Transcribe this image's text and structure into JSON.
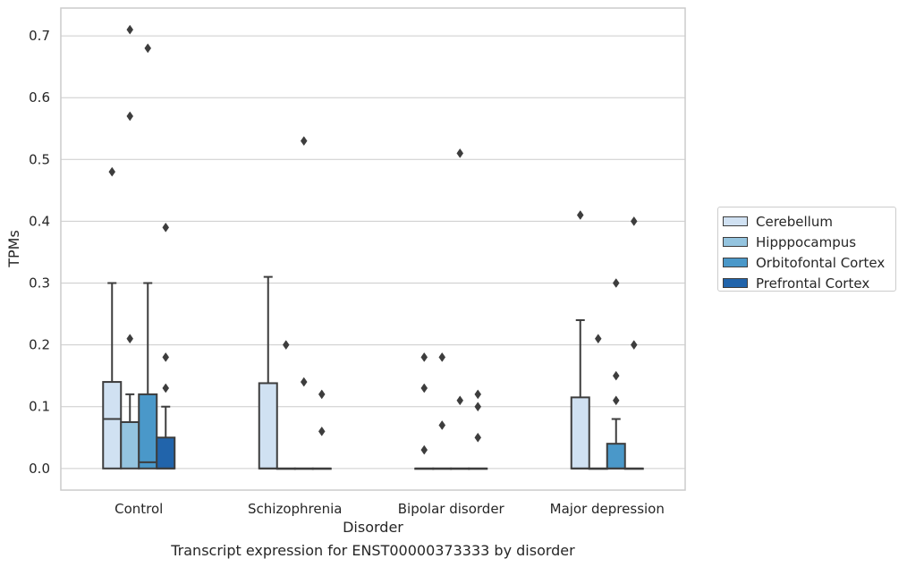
{
  "chart_data": {
    "type": "box",
    "caption": "Transcript expression for ENST00000373333 by disorder",
    "xlabel": "Disorder",
    "ylabel": "TPMs",
    "ylim": [
      -0.035,
      0.745
    ],
    "yticks": [
      0.0,
      0.1,
      0.2,
      0.3,
      0.4,
      0.5,
      0.6,
      0.7
    ],
    "ytick_labels": [
      "0.0",
      "0.1",
      "0.2",
      "0.3",
      "0.4",
      "0.5",
      "0.6",
      "0.7"
    ],
    "categories": [
      "Control",
      "Schizophrenia",
      "Bipolar disorder",
      "Major depression"
    ],
    "grid": true,
    "legend_position": "right",
    "series": [
      {
        "name": "Cerebellum",
        "color": "#d0e1f2",
        "boxes": [
          {
            "q1": 0,
            "median": 0.08,
            "q3": 0.14,
            "whisker_low": 0,
            "whisker_high": 0.3,
            "outliers": [
              0.48
            ]
          },
          {
            "q1": 0,
            "median": 0,
            "q3": 0.138,
            "whisker_low": 0,
            "whisker_high": 0.31,
            "outliers": []
          },
          {
            "q1": 0,
            "median": 0,
            "q3": 0,
            "whisker_low": 0,
            "whisker_high": 0,
            "outliers": [
              0.03,
              0.13,
              0.18
            ]
          },
          {
            "q1": 0,
            "median": 0,
            "q3": 0.115,
            "whisker_low": 0,
            "whisker_high": 0.24,
            "outliers": [
              0.41
            ]
          }
        ]
      },
      {
        "name": "Hipppocampus",
        "color": "#94c4df",
        "boxes": [
          {
            "q1": 0,
            "median": 0.075,
            "q3": 0.075,
            "whisker_low": 0,
            "whisker_high": 0.12,
            "outliers": [
              0.21,
              0.57,
              0.71
            ]
          },
          {
            "q1": 0,
            "median": 0,
            "q3": 0,
            "whisker_low": 0,
            "whisker_high": 0,
            "outliers": [
              0.2
            ]
          },
          {
            "q1": 0,
            "median": 0,
            "q3": 0,
            "whisker_low": 0,
            "whisker_high": 0,
            "outliers": [
              0.07,
              0.18
            ]
          },
          {
            "q1": 0,
            "median": 0,
            "q3": 0,
            "whisker_low": 0,
            "whisker_high": 0,
            "outliers": [
              0.21
            ]
          }
        ]
      },
      {
        "name": "Orbitofontal Cortex",
        "color": "#4a98c9",
        "boxes": [
          {
            "q1": 0,
            "median": 0.01,
            "q3": 0.12,
            "whisker_low": 0,
            "whisker_high": 0.3,
            "outliers": [
              0.68
            ]
          },
          {
            "q1": 0,
            "median": 0,
            "q3": 0,
            "whisker_low": 0,
            "whisker_high": 0,
            "outliers": [
              0.14,
              0.53
            ]
          },
          {
            "q1": 0,
            "median": 0,
            "q3": 0,
            "whisker_low": 0,
            "whisker_high": 0,
            "outliers": [
              0.11,
              0.51
            ]
          },
          {
            "q1": 0,
            "median": 0,
            "q3": 0.04,
            "whisker_low": 0,
            "whisker_high": 0.08,
            "outliers": [
              0.11,
              0.15,
              0.3
            ]
          }
        ]
      },
      {
        "name": "Prefrontal Cortex",
        "color": "#2164ab",
        "boxes": [
          {
            "q1": 0,
            "median": 0,
            "q3": 0.05,
            "whisker_low": 0,
            "whisker_high": 0.1,
            "outliers": [
              0.13,
              0.18,
              0.39
            ]
          },
          {
            "q1": 0,
            "median": 0,
            "q3": 0,
            "whisker_low": 0,
            "whisker_high": 0,
            "outliers": [
              0.06,
              0.12
            ]
          },
          {
            "q1": 0,
            "median": 0,
            "q3": 0,
            "whisker_low": 0,
            "whisker_high": 0,
            "outliers": [
              0.05,
              0.1,
              0.12
            ]
          },
          {
            "q1": 0,
            "median": 0,
            "q3": 0,
            "whisker_low": 0,
            "whisker_high": 0,
            "outliers": [
              0.2,
              0.4
            ]
          }
        ]
      }
    ]
  }
}
